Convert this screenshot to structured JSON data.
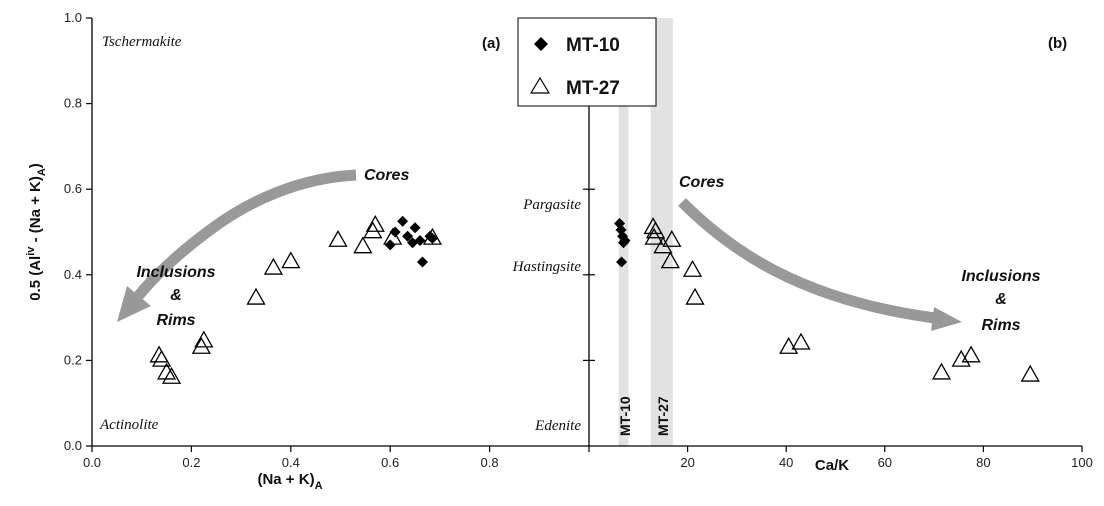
{
  "chart_data": [
    {
      "panel": "(a)",
      "type": "scatter",
      "xlabel": "(Na + K)",
      "xlabel_sub": "A",
      "ylabel_main": "0.5 (Al",
      "ylabel_sup": "iv",
      "ylabel_rest": " - (Na + K)",
      "ylabel_sub": "A",
      "ylabel_close": ")",
      "xlim": [
        0,
        1.0
      ],
      "ylim": [
        0,
        1.0
      ],
      "xticks": [
        "0.0",
        "0.2",
        "0.4",
        "0.6",
        "0.8"
      ],
      "xtick_values": [
        0,
        0.2,
        0.4,
        0.6,
        0.8
      ],
      "yticks": [
        "0.0",
        "0.2",
        "0.4",
        "0.6",
        "0.8",
        "1.0"
      ],
      "ytick_values": [
        0,
        0.2,
        0.4,
        0.6,
        0.8,
        1.0
      ],
      "field_labels": {
        "top_left": "Tschermakite",
        "bottom_left": "Actinolite"
      },
      "series": [
        {
          "name": "MT-10",
          "marker": "diamond",
          "points": [
            [
              0.6,
              0.47
            ],
            [
              0.61,
              0.5
            ],
            [
              0.625,
              0.525
            ],
            [
              0.635,
              0.49
            ],
            [
              0.645,
              0.475
            ],
            [
              0.65,
              0.51
            ],
            [
              0.66,
              0.48
            ],
            [
              0.665,
              0.43
            ],
            [
              0.68,
              0.49
            ],
            [
              0.685,
              0.485
            ]
          ]
        },
        {
          "name": "MT-27",
          "marker": "triangle",
          "points": [
            [
              0.135,
              0.21
            ],
            [
              0.14,
              0.2
            ],
            [
              0.15,
              0.17
            ],
            [
              0.16,
              0.16
            ],
            [
              0.22,
              0.23
            ],
            [
              0.225,
              0.245
            ],
            [
              0.33,
              0.345
            ],
            [
              0.365,
              0.415
            ],
            [
              0.4,
              0.43
            ],
            [
              0.495,
              0.48
            ],
            [
              0.545,
              0.465
            ],
            [
              0.565,
              0.5
            ],
            [
              0.57,
              0.515
            ],
            [
              0.605,
              0.485
            ],
            [
              0.685,
              0.485
            ]
          ]
        }
      ],
      "annotations": {
        "cores": "Cores",
        "inclusions": "Inclusions",
        "amp": "&",
        "rims": "Rims"
      }
    },
    {
      "panel": "(b)",
      "type": "scatter",
      "xlabel": "Ca/K",
      "xlim": [
        0,
        100
      ],
      "ylim": [
        0,
        1.0
      ],
      "xticks": [
        "20",
        "40",
        "60",
        "80",
        "100"
      ],
      "xtick_values": [
        20,
        40,
        60,
        80,
        100
      ],
      "field_labels": {
        "pargasite": "Pargasite",
        "hastingsite": "Hastingsite",
        "edenite": "Edenite"
      },
      "bands": [
        {
          "name": "MT-10",
          "x": [
            6,
            8
          ]
        },
        {
          "name": "MT-27",
          "x": [
            12.5,
            17
          ]
        }
      ],
      "series": [
        {
          "name": "MT-10",
          "marker": "diamond",
          "points": [
            [
              6.2,
              0.52
            ],
            [
              6.5,
              0.505
            ],
            [
              6.8,
              0.49
            ],
            [
              7.0,
              0.475
            ],
            [
              7.3,
              0.48
            ],
            [
              6.6,
              0.43
            ]
          ]
        },
        {
          "name": "MT-27",
          "marker": "triangle",
          "points": [
            [
              13.0,
              0.51
            ],
            [
              13.5,
              0.5
            ],
            [
              13.2,
              0.485
            ],
            [
              15.0,
              0.465
            ],
            [
              16.8,
              0.48
            ],
            [
              16.5,
              0.43
            ],
            [
              21.0,
              0.41
            ],
            [
              21.5,
              0.345
            ],
            [
              40.5,
              0.23
            ],
            [
              43.0,
              0.24
            ],
            [
              71.5,
              0.17
            ],
            [
              75.5,
              0.2
            ],
            [
              77.5,
              0.21
            ],
            [
              89.5,
              0.165
            ]
          ]
        }
      ],
      "annotations": {
        "cores": "Cores",
        "inclusions": "Inclusions",
        "amp": "&",
        "rims": "Rims"
      }
    }
  ],
  "legend": {
    "items": [
      {
        "name": "MT-10",
        "marker": "diamond"
      },
      {
        "name": "MT-27",
        "marker": "triangle"
      }
    ]
  },
  "colors": {
    "marker_fill": "#000000",
    "arrow": "#999999",
    "band": "#e2e2e2",
    "axis": "#000000"
  }
}
